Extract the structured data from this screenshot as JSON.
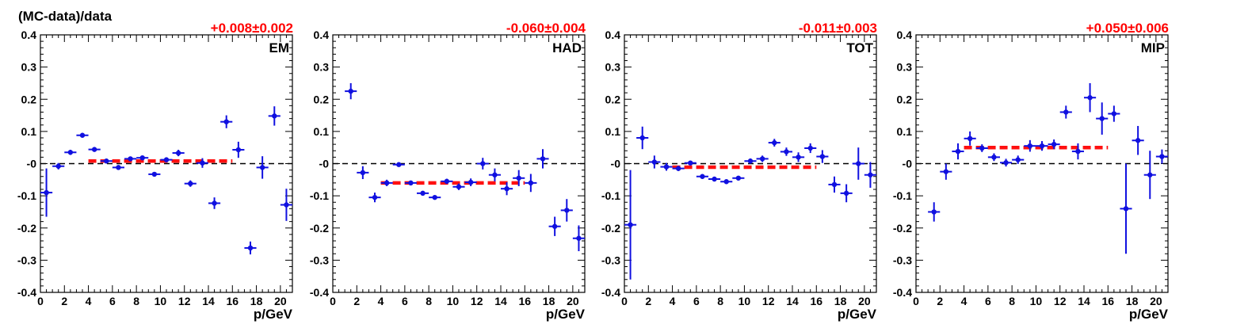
{
  "figure": {
    "ylabel": "(MC-data)/data",
    "xlabel": "p/GeV"
  },
  "colors": {
    "points": "#1010e0",
    "fit": "#ff1010",
    "reference": "#000000",
    "fit_label": "#ff0000"
  },
  "chart_data": [
    {
      "type": "scatter",
      "panel_label": "EM",
      "fit_label": "+0.008±0.002",
      "fit": {
        "value": 0.008,
        "x_range": [
          4,
          16
        ]
      },
      "reference_y": 0,
      "xlim": [
        0,
        21
      ],
      "ylim": [
        -0.4,
        0.4
      ],
      "xticks": [
        "0",
        "2",
        "4",
        "6",
        "8",
        "10",
        "12",
        "14",
        "16",
        "18",
        "20"
      ],
      "yticks": [
        "-0.4",
        "-0.3",
        "-0.2",
        "-0.1",
        "-0",
        "0.1",
        "0.2",
        "0.3",
        "0.4"
      ],
      "xlabel": "p/GeV",
      "points": [
        {
          "x": 0.5,
          "y": -0.09,
          "err": 0.075
        },
        {
          "x": 1.5,
          "y": -0.008,
          "err": 0.01
        },
        {
          "x": 2.5,
          "y": 0.035,
          "err": 0.008
        },
        {
          "x": 3.5,
          "y": 0.088,
          "err": 0.006
        },
        {
          "x": 4.5,
          "y": 0.044,
          "err": 0.006
        },
        {
          "x": 5.5,
          "y": 0.008,
          "err": 0.005
        },
        {
          "x": 6.5,
          "y": -0.012,
          "err": 0.006
        },
        {
          "x": 7.5,
          "y": 0.015,
          "err": 0.006
        },
        {
          "x": 8.5,
          "y": 0.018,
          "err": 0.006
        },
        {
          "x": 9.5,
          "y": -0.033,
          "err": 0.006
        },
        {
          "x": 10.5,
          "y": 0.012,
          "err": 0.007
        },
        {
          "x": 11.5,
          "y": 0.033,
          "err": 0.01
        },
        {
          "x": 12.5,
          "y": -0.062,
          "err": 0.01
        },
        {
          "x": 13.5,
          "y": 0.002,
          "err": 0.015
        },
        {
          "x": 14.5,
          "y": -0.123,
          "err": 0.018
        },
        {
          "x": 15.5,
          "y": 0.13,
          "err": 0.02
        },
        {
          "x": 16.5,
          "y": 0.043,
          "err": 0.025
        },
        {
          "x": 17.5,
          "y": -0.262,
          "err": 0.02
        },
        {
          "x": 18.5,
          "y": -0.012,
          "err": 0.035
        },
        {
          "x": 19.5,
          "y": 0.148,
          "err": 0.03
        },
        {
          "x": 20.5,
          "y": -0.128,
          "err": 0.05
        }
      ]
    },
    {
      "type": "scatter",
      "panel_label": "HAD",
      "fit_label": "-0.060±0.004",
      "fit": {
        "value": -0.06,
        "x_range": [
          4,
          16
        ]
      },
      "reference_y": 0,
      "xlim": [
        0,
        21
      ],
      "ylim": [
        -0.4,
        0.4
      ],
      "xticks": [
        "0",
        "2",
        "4",
        "6",
        "8",
        "10",
        "12",
        "14",
        "16",
        "18",
        "20"
      ],
      "yticks": [
        "-0.4",
        "-0.3",
        "-0.2",
        "-0.1",
        "-0",
        "0.1",
        "0.2",
        "0.3",
        "0.4"
      ],
      "xlabel": "p/GeV",
      "points": [
        {
          "x": 1.5,
          "y": 0.225,
          "err": 0.025
        },
        {
          "x": 2.5,
          "y": -0.028,
          "err": 0.02
        },
        {
          "x": 3.5,
          "y": -0.105,
          "err": 0.015
        },
        {
          "x": 4.5,
          "y": -0.06,
          "err": 0.01
        },
        {
          "x": 5.5,
          "y": -0.003,
          "err": 0.006
        },
        {
          "x": 6.5,
          "y": -0.06,
          "err": 0.006
        },
        {
          "x": 7.5,
          "y": -0.092,
          "err": 0.006
        },
        {
          "x": 8.5,
          "y": -0.105,
          "err": 0.006
        },
        {
          "x": 9.5,
          "y": -0.055,
          "err": 0.008
        },
        {
          "x": 10.5,
          "y": -0.072,
          "err": 0.01
        },
        {
          "x": 11.5,
          "y": -0.058,
          "err": 0.012
        },
        {
          "x": 12.5,
          "y": 0.0,
          "err": 0.018
        },
        {
          "x": 13.5,
          "y": -0.035,
          "err": 0.02
        },
        {
          "x": 14.5,
          "y": -0.078,
          "err": 0.02
        },
        {
          "x": 15.5,
          "y": -0.045,
          "err": 0.025
        },
        {
          "x": 16.5,
          "y": -0.06,
          "err": 0.028
        },
        {
          "x": 17.5,
          "y": 0.015,
          "err": 0.03
        },
        {
          "x": 18.5,
          "y": -0.195,
          "err": 0.03
        },
        {
          "x": 19.5,
          "y": -0.145,
          "err": 0.035
        },
        {
          "x": 20.5,
          "y": -0.232,
          "err": 0.04
        }
      ]
    },
    {
      "type": "scatter",
      "panel_label": "TOT",
      "fit_label": "-0.011±0.003",
      "fit": {
        "value": -0.011,
        "x_range": [
          4,
          16
        ]
      },
      "reference_y": 0,
      "xlim": [
        0,
        21
      ],
      "ylim": [
        -0.4,
        0.4
      ],
      "xticks": [
        "0",
        "2",
        "4",
        "6",
        "8",
        "10",
        "12",
        "14",
        "16",
        "18",
        "20"
      ],
      "yticks": [
        "-0.4",
        "-0.3",
        "-0.2",
        "-0.1",
        "-0",
        "0.1",
        "0.2",
        "0.3",
        "0.4"
      ],
      "xlabel": "p/GeV",
      "points": [
        {
          "x": 0.5,
          "y": -0.19,
          "err": 0.17
        },
        {
          "x": 1.5,
          "y": 0.08,
          "err": 0.035
        },
        {
          "x": 2.5,
          "y": 0.005,
          "err": 0.02
        },
        {
          "x": 3.5,
          "y": -0.01,
          "err": 0.012
        },
        {
          "x": 4.5,
          "y": -0.015,
          "err": 0.008
        },
        {
          "x": 5.5,
          "y": 0.002,
          "err": 0.006
        },
        {
          "x": 6.5,
          "y": -0.04,
          "err": 0.006
        },
        {
          "x": 7.5,
          "y": -0.048,
          "err": 0.006
        },
        {
          "x": 8.5,
          "y": -0.056,
          "err": 0.006
        },
        {
          "x": 9.5,
          "y": -0.045,
          "err": 0.007
        },
        {
          "x": 10.5,
          "y": 0.008,
          "err": 0.008
        },
        {
          "x": 11.5,
          "y": 0.015,
          "err": 0.01
        },
        {
          "x": 12.5,
          "y": 0.065,
          "err": 0.012
        },
        {
          "x": 13.5,
          "y": 0.037,
          "err": 0.013
        },
        {
          "x": 14.5,
          "y": 0.02,
          "err": 0.015
        },
        {
          "x": 15.5,
          "y": 0.048,
          "err": 0.015
        },
        {
          "x": 16.5,
          "y": 0.022,
          "err": 0.02
        },
        {
          "x": 17.5,
          "y": -0.065,
          "err": 0.025
        },
        {
          "x": 18.5,
          "y": -0.092,
          "err": 0.028
        },
        {
          "x": 19.5,
          "y": 0.0,
          "err": 0.05
        },
        {
          "x": 20.5,
          "y": -0.035,
          "err": 0.04
        }
      ]
    },
    {
      "type": "scatter",
      "panel_label": "MIP",
      "fit_label": "+0.050±0.006",
      "fit": {
        "value": 0.05,
        "x_range": [
          4,
          16
        ]
      },
      "reference_y": 0,
      "xlim": [
        0,
        21
      ],
      "ylim": [
        -0.4,
        0.4
      ],
      "xticks": [
        "0",
        "2",
        "4",
        "6",
        "8",
        "10",
        "12",
        "14",
        "16",
        "18",
        "20"
      ],
      "yticks": [
        "-0.4",
        "-0.3",
        "-0.2",
        "-0.1",
        "-0",
        "0.1",
        "0.2",
        "0.3",
        "0.4"
      ],
      "xlabel": "p/GeV",
      "points": [
        {
          "x": 1.5,
          "y": -0.15,
          "err": 0.03
        },
        {
          "x": 2.5,
          "y": -0.025,
          "err": 0.025
        },
        {
          "x": 3.5,
          "y": 0.038,
          "err": 0.025
        },
        {
          "x": 4.5,
          "y": 0.078,
          "err": 0.022
        },
        {
          "x": 5.5,
          "y": 0.048,
          "err": 0.012
        },
        {
          "x": 6.5,
          "y": 0.02,
          "err": 0.012
        },
        {
          "x": 7.5,
          "y": 0.003,
          "err": 0.012
        },
        {
          "x": 8.5,
          "y": 0.012,
          "err": 0.013
        },
        {
          "x": 9.5,
          "y": 0.055,
          "err": 0.018
        },
        {
          "x": 10.5,
          "y": 0.055,
          "err": 0.015
        },
        {
          "x": 11.5,
          "y": 0.06,
          "err": 0.015
        },
        {
          "x": 12.5,
          "y": 0.16,
          "err": 0.02
        },
        {
          "x": 13.5,
          "y": 0.038,
          "err": 0.025
        },
        {
          "x": 14.5,
          "y": 0.205,
          "err": 0.045
        },
        {
          "x": 15.5,
          "y": 0.14,
          "err": 0.05
        },
        {
          "x": 16.5,
          "y": 0.155,
          "err": 0.025
        },
        {
          "x": 17.5,
          "y": -0.14,
          "err": 0.14
        },
        {
          "x": 18.5,
          "y": 0.072,
          "err": 0.045
        },
        {
          "x": 19.5,
          "y": -0.035,
          "err": 0.075
        },
        {
          "x": 20.5,
          "y": 0.022,
          "err": 0.022
        }
      ]
    }
  ]
}
